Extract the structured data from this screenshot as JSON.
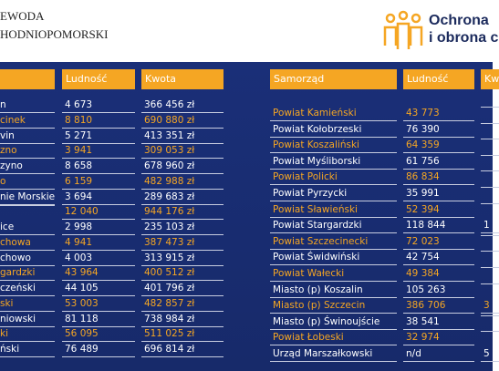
{
  "header": {
    "left_lines": [
      "EWODA",
      "HODNIOPOMORSKI"
    ],
    "right_lines": [
      "Ochrona",
      "i obrona c"
    ]
  },
  "left_table": {
    "headers": [
      "Ludność",
      "Kwota"
    ],
    "rows": [
      {
        "name": "n",
        "population": "4 673",
        "amount": "366 456 zł",
        "highlight": false
      },
      {
        "name": "cinek",
        "population": "8 810",
        "amount": "690 880 zł",
        "highlight": true
      },
      {
        "name": "vin",
        "population": "5 271",
        "amount": "413 351 zł",
        "highlight": false
      },
      {
        "name": "zno",
        "population": "3 941",
        "amount": "309 053 zł",
        "highlight": true
      },
      {
        "name": "zyno",
        "population": "8 658",
        "amount": "678 960 zł",
        "highlight": false
      },
      {
        "name": "o",
        "population": "6 159",
        "amount": "482 988 zł",
        "highlight": true
      },
      {
        "name": "nie Morskie",
        "population": "3 694",
        "amount": "289 683 zł",
        "highlight": false
      },
      {
        "population": "12 040",
        "amount": "944 176 zł",
        "highlight": true
      },
      {
        "name": "ice",
        "population": "2 998",
        "amount": "235 103 zł",
        "highlight": false
      },
      {
        "name": "chowa",
        "population": "4 941",
        "amount": "387 473 zł",
        "highlight": true
      },
      {
        "name": "chowo",
        "population": "4 003",
        "amount": "313 915 zł",
        "highlight": false
      },
      {
        "name": "gardzki",
        "population": "43 964",
        "amount": "400 512 zł",
        "highlight": true
      },
      {
        "name": "czeński",
        "population": "44 105",
        "amount": "401 796 zł",
        "highlight": false
      },
      {
        "name": "ski",
        "population": "53 003",
        "amount": "482 857 zł",
        "highlight": true
      },
      {
        "name": "niowski",
        "population": "81 118",
        "amount": "738 984 zł",
        "highlight": false
      },
      {
        "name": "ki",
        "population": "56 095",
        "amount": "511 025 zł",
        "highlight": true
      },
      {
        "name": "ński",
        "population": "76 489",
        "amount": "696 814 zł",
        "highlight": false
      }
    ]
  },
  "right_table": {
    "headers": [
      "Samorząd",
      "Ludność",
      "Kw"
    ],
    "rows": [
      {
        "name": "Powiat Kamieński",
        "population": "43 773",
        "highlight": true
      },
      {
        "name": "Powiat Kołobrzeski",
        "population": "76 390",
        "highlight": false
      },
      {
        "name": "Powiat Koszaliński",
        "population": "64 359",
        "highlight": true
      },
      {
        "name": "Powiat Myśliborski",
        "population": "61 756",
        "highlight": false
      },
      {
        "name": "Powiat Policki",
        "population": "86 834",
        "highlight": true
      },
      {
        "name": "Powiat Pyrzycki",
        "population": "35 991",
        "highlight": false
      },
      {
        "name": "Powiat Sławieński",
        "population": "52 394",
        "highlight": true
      },
      {
        "name": "Powiat Stargardzki",
        "population": "118 844",
        "amount": "1",
        "highlight": false
      },
      {
        "name": "Powiat Szczecinecki",
        "population": "72 023",
        "highlight": true
      },
      {
        "name": "Powiat Świdwiński",
        "population": "42 754",
        "highlight": false
      },
      {
        "name": "Powiat Wałecki",
        "population": "49 384",
        "highlight": true
      },
      {
        "name": "Miasto (p) Koszalin",
        "population": "105 263",
        "highlight": false
      },
      {
        "name": "Miasto (p) Szczecin",
        "population": "386 706",
        "amount": "3",
        "highlight": true
      },
      {
        "name": "Miasto (p) Świnoujście",
        "population": "38 541",
        "highlight": false
      },
      {
        "name": "Powiat Łobeski",
        "population": "32 974",
        "highlight": true
      },
      {
        "name": "Urząd Marszałkowski",
        "population": "n/d",
        "amount": "5",
        "highlight": false
      }
    ]
  }
}
